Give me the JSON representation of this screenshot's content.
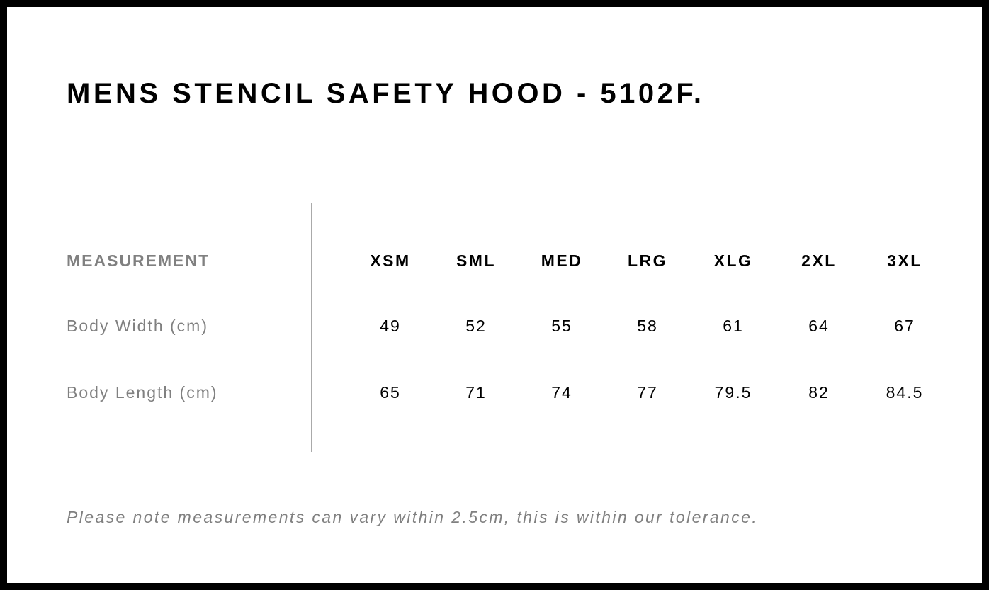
{
  "title": "MENS STENCIL SAFETY HOOD - 5102F.",
  "table": {
    "header_label": "MEASUREMENT",
    "sizes": [
      "XSM",
      "SML",
      "MED",
      "LRG",
      "XLG",
      "2XL",
      "3XL"
    ],
    "rows": [
      {
        "label": "Body Width (cm)",
        "values": [
          "49",
          "52",
          "55",
          "58",
          "61",
          "64",
          "67"
        ]
      },
      {
        "label": "Body Length (cm)",
        "values": [
          "65",
          "71",
          "74",
          "77",
          "79.5",
          "82",
          "84.5"
        ]
      }
    ]
  },
  "note": "Please note measurements can vary within 2.5cm, this is within our tolerance."
}
